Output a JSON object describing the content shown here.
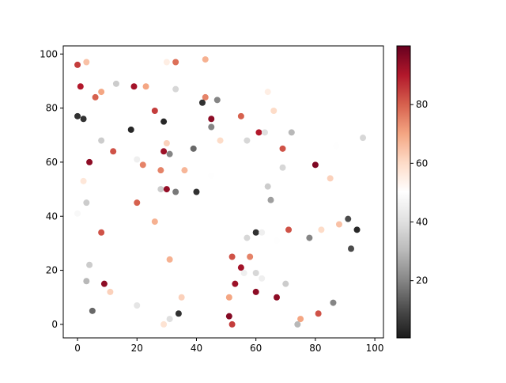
{
  "chart_data": {
    "type": "scatter",
    "x": [
      0,
      3,
      1,
      6,
      8,
      13,
      19,
      23,
      30,
      33,
      43,
      33,
      43,
      42,
      47,
      45,
      45,
      0,
      2,
      18,
      29,
      26,
      55,
      61,
      63,
      72,
      64,
      66,
      8,
      48,
      57,
      96,
      87,
      12,
      20,
      22,
      29,
      31,
      30,
      39,
      69,
      4,
      80,
      28,
      36,
      69,
      45,
      85,
      2,
      28,
      30,
      33,
      40,
      64,
      65,
      3,
      20,
      0,
      26,
      8,
      57,
      60,
      62,
      67,
      71,
      82,
      88,
      91,
      94,
      78,
      92,
      4,
      31,
      52,
      58,
      55,
      56,
      60,
      62,
      3,
      9,
      11,
      53,
      60,
      70,
      67,
      51,
      35,
      5,
      20,
      34,
      31,
      29,
      51,
      52,
      74,
      75,
      81,
      86
    ],
    "y": [
      96,
      97,
      88,
      84,
      86,
      89,
      88,
      88,
      97,
      97,
      98,
      87,
      84,
      82,
      83,
      76,
      73,
      77,
      76,
      72,
      75,
      79,
      77,
      71,
      71,
      71,
      86,
      79,
      68,
      68,
      68,
      69,
      66,
      64,
      61,
      59,
      64,
      63,
      67,
      65,
      65,
      60,
      59,
      57,
      57,
      58,
      55,
      54,
      53,
      50,
      50,
      49,
      49,
      51,
      46,
      45,
      45,
      41,
      38,
      34,
      32,
      34,
      34,
      31,
      35,
      35,
      37,
      39,
      35,
      32,
      28,
      22,
      24,
      25,
      25,
      21,
      19,
      19,
      17,
      16,
      15,
      12,
      15,
      12,
      15,
      10,
      10,
      10,
      5,
      7,
      4,
      2,
      0,
      3,
      0,
      0,
      2,
      4,
      8
    ],
    "c": [
      85,
      65,
      90,
      80,
      70,
      35,
      92,
      70,
      55,
      78,
      68,
      38,
      75,
      5,
      20,
      95,
      20,
      5,
      5,
      3,
      3,
      85,
      80,
      90,
      40,
      30,
      55,
      60,
      35,
      60,
      38,
      38,
      50,
      82,
      45,
      75,
      93,
      20,
      62,
      15,
      82,
      95,
      97,
      75,
      67,
      38,
      50,
      62,
      57,
      35,
      94,
      18,
      5,
      35,
      25,
      35,
      80,
      48,
      68,
      82,
      38,
      5,
      45,
      50,
      82,
      60,
      65,
      10,
      3,
      20,
      10,
      35,
      68,
      82,
      75,
      92,
      45,
      38,
      45,
      30,
      95,
      62,
      93,
      95,
      35,
      95,
      70,
      62,
      15,
      42,
      5,
      40,
      58,
      96,
      85,
      30,
      70,
      82,
      20
    ],
    "colormap": "RdGy_r",
    "clim": [
      0.5,
      100
    ],
    "cticks": [
      20,
      40,
      60,
      80
    ],
    "xlim": [
      -4.8,
      102.9
    ],
    "ylim": [
      -5,
      103
    ],
    "xticks": [
      0,
      20,
      40,
      60,
      80,
      100
    ],
    "yticks": [
      0,
      20,
      40,
      60,
      80,
      100
    ]
  }
}
